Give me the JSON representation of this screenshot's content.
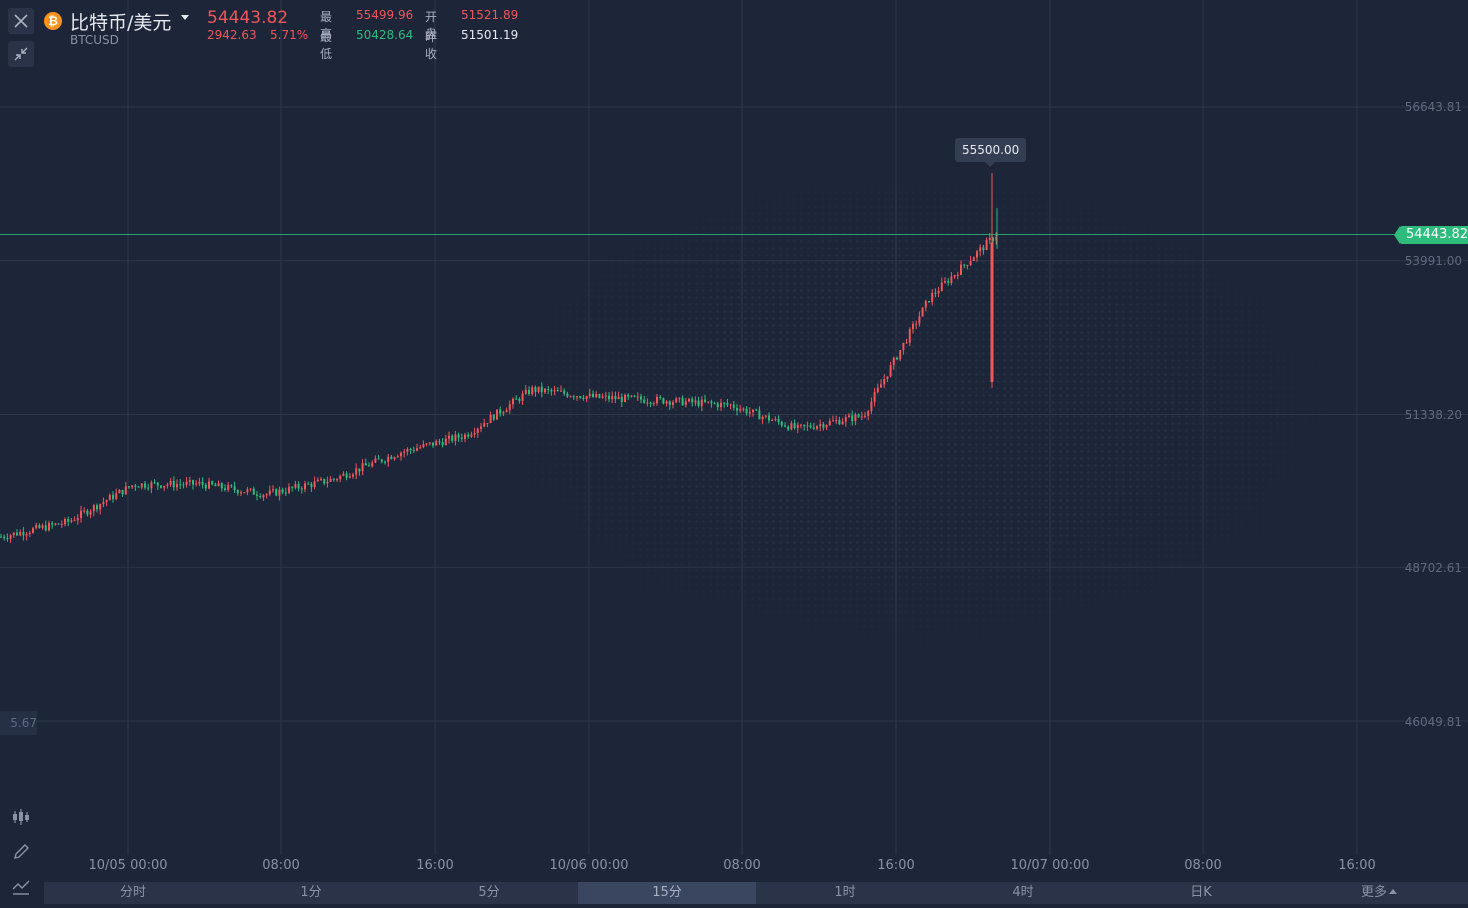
{
  "symbol": {
    "name": "比特币/美元",
    "code": "BTCUSD",
    "last_price": "54443.82",
    "change": "2942.63",
    "change_pct": "5.71%"
  },
  "stats": {
    "high_label": "最高",
    "high_value": "55499.96",
    "open_label": "开盘",
    "open_value": "51521.89",
    "low_label": "最低",
    "low_value": "50428.64",
    "prev_close_label": "昨收",
    "prev_close_value": "51501.19"
  },
  "price_axis": [
    "56643.81",
    "53991.00",
    "51338.20",
    "48702.61",
    "46049.81"
  ],
  "time_axis": [
    "10/05 00:00",
    "08:00",
    "16:00",
    "10/06 00:00",
    "08:00",
    "16:00",
    "10/07 00:00",
    "08:00",
    "16:00"
  ],
  "current_price_tag": "54443.82",
  "max_tooltip": "55500.00",
  "left_edge_label": "5.67",
  "timeframes": [
    "分时",
    "1分",
    "5分",
    "15分",
    "1时",
    "4时",
    "日K",
    "更多"
  ],
  "active_timeframe": "15分",
  "colors": {
    "up": "#f0565a",
    "down": "#2ebc7d",
    "background": "#1d2538",
    "grid": "#2e374b",
    "current_line": "#2ebc7d"
  },
  "icons": [
    "close-icon",
    "collapse-icon",
    "candles-icon",
    "pen-icon",
    "indicator-icon",
    "bitcoin-logo-icon",
    "chevron-down-icon"
  ],
  "chart_data": {
    "type": "candlestick",
    "interval": "15分",
    "ylim": [
      46049.81,
      56643.81
    ],
    "grid": true,
    "current_price": 54443.82,
    "high_marker": 55500.0,
    "x": [
      "10/05 00:00",
      "10/05 08:00",
      "10/05 16:00",
      "10/06 00:00",
      "10/06 08:00",
      "10/06 16:00",
      "10/07 00:00"
    ],
    "close_trend": [
      49230,
      49480,
      50130,
      50140,
      49960,
      50220,
      50680,
      50980,
      51770,
      51630,
      51580,
      51500,
      51090,
      51320,
      53360,
      54440
    ]
  }
}
